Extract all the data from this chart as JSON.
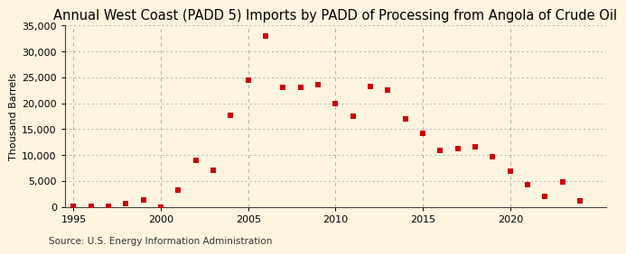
{
  "title": "Annual West Coast (PADD 5) Imports by PADD of Processing from Angola of Crude Oil",
  "ylabel": "Thousand Barrels",
  "source": "Source: U.S. Energy Information Administration",
  "background_color": "#fdf5e0",
  "years": [
    1995,
    1996,
    1997,
    1998,
    1999,
    2000,
    2001,
    2002,
    2003,
    2004,
    2005,
    2006,
    2007,
    2008,
    2009,
    2010,
    2011,
    2012,
    2013,
    2014,
    2015,
    2016,
    2017,
    2018,
    2019,
    2020,
    2021,
    2022,
    2023,
    2024
  ],
  "values": [
    50,
    100,
    150,
    700,
    1300,
    -50,
    3200,
    9000,
    7000,
    17700,
    24500,
    33000,
    23000,
    23000,
    23500,
    20000,
    17500,
    23200,
    22500,
    16900,
    14200,
    10800,
    11200,
    11500,
    9700,
    6800,
    4300,
    2000,
    4800,
    1200
  ],
  "marker_color": "#cc0000",
  "marker_size": 18,
  "ylim": [
    0,
    35000
  ],
  "yticks": [
    0,
    5000,
    10000,
    15000,
    20000,
    25000,
    30000,
    35000
  ],
  "xlim": [
    1994.5,
    2025.5
  ],
  "xticks": [
    1995,
    2000,
    2005,
    2010,
    2015,
    2020
  ],
  "grid_color": "#b0b0b0",
  "title_fontsize": 10.5,
  "label_fontsize": 8,
  "tick_fontsize": 8,
  "source_fontsize": 7.5
}
